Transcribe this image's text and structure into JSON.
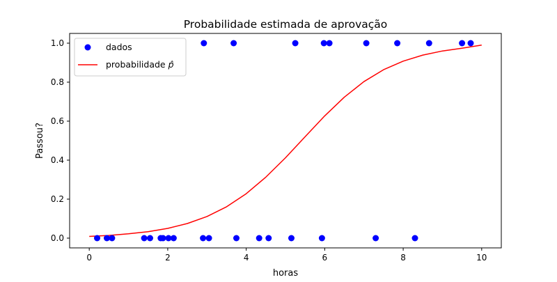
{
  "chart_data": {
    "type": "scatter",
    "title": "Probabilidade estimada de aprovação",
    "xlabel": "horas",
    "ylabel": "Passou?",
    "xlim": [
      -0.5,
      10.5
    ],
    "ylim": [
      -0.05,
      1.05
    ],
    "xticks": [
      0,
      2,
      4,
      6,
      8,
      10
    ],
    "xtick_labels": [
      "0",
      "2",
      "4",
      "6",
      "8",
      "10"
    ],
    "yticks": [
      0.0,
      0.2,
      0.4,
      0.6,
      0.8,
      1.0
    ],
    "ytick_labels": [
      "0.0",
      "0.2",
      "0.4",
      "0.6",
      "0.8",
      "1.0"
    ],
    "grid": false,
    "legend": {
      "position": "top-left",
      "entries": [
        {
          "label": "dados",
          "marker": "circle",
          "color": "#0000ff"
        },
        {
          "label": "probabilidade p̂",
          "label_prefix": "probabilidade ",
          "label_symbol": "p̂",
          "marker": "line",
          "color": "#ff0000"
        }
      ]
    },
    "series": [
      {
        "name": "dados",
        "kind": "scatter",
        "color": "#0000ff",
        "points": [
          [
            0.2,
            0
          ],
          [
            0.45,
            0
          ],
          [
            0.58,
            0
          ],
          [
            1.4,
            0
          ],
          [
            1.55,
            0
          ],
          [
            1.82,
            0
          ],
          [
            1.88,
            0
          ],
          [
            2.02,
            0
          ],
          [
            2.15,
            0
          ],
          [
            2.9,
            0
          ],
          [
            3.05,
            0
          ],
          [
            3.75,
            0
          ],
          [
            4.33,
            0
          ],
          [
            4.57,
            0
          ],
          [
            5.15,
            0
          ],
          [
            5.93,
            0
          ],
          [
            7.3,
            0
          ],
          [
            8.3,
            0
          ],
          [
            2.92,
            1
          ],
          [
            3.68,
            1
          ],
          [
            5.25,
            1
          ],
          [
            5.98,
            1
          ],
          [
            6.12,
            1
          ],
          [
            7.06,
            1
          ],
          [
            7.85,
            1
          ],
          [
            8.66,
            1
          ],
          [
            9.5,
            1
          ],
          [
            9.72,
            1
          ]
        ]
      },
      {
        "name": "probabilidade p̂",
        "kind": "line",
        "color": "#ff0000",
        "x": [
          0,
          0.5,
          1,
          1.5,
          2,
          2.5,
          3,
          3.5,
          4,
          4.5,
          5,
          5.5,
          6,
          6.5,
          7,
          7.5,
          8,
          8.5,
          9,
          9.5,
          10
        ],
        "y": [
          0.009,
          0.014,
          0.022,
          0.033,
          0.05,
          0.075,
          0.111,
          0.161,
          0.228,
          0.313,
          0.412,
          0.52,
          0.627,
          0.723,
          0.803,
          0.864,
          0.908,
          0.939,
          0.96,
          0.974,
          0.99
        ]
      }
    ]
  }
}
